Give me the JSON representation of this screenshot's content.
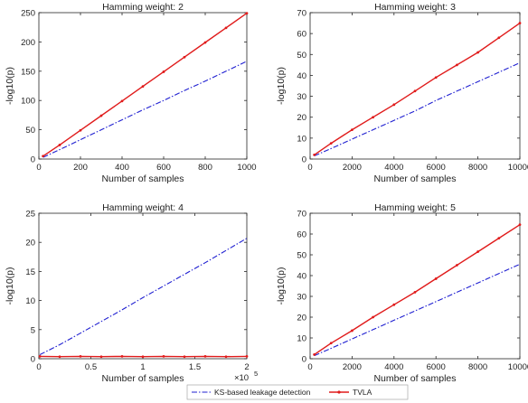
{
  "chart_data": [
    {
      "type": "line",
      "title": "Hamming weight: 2",
      "xlabel": "Number of samples",
      "ylabel": "-log10(p)",
      "xlim": [
        0,
        1000
      ],
      "ylim": [
        0,
        250
      ],
      "xticks": [
        0,
        200,
        400,
        600,
        800,
        1000
      ],
      "yticks": [
        0,
        50,
        100,
        150,
        200,
        250
      ],
      "x_exponent": "",
      "series": [
        {
          "name": "KS-based leakage detection",
          "x": [
            20,
            100,
            200,
            300,
            400,
            500,
            600,
            700,
            800,
            900,
            1000
          ],
          "y": [
            3,
            16,
            33,
            50,
            67,
            84,
            100,
            117,
            133,
            150,
            167
          ]
        },
        {
          "name": "TVLA",
          "x": [
            20,
            100,
            200,
            300,
            400,
            500,
            600,
            700,
            800,
            900,
            1000
          ],
          "y": [
            5,
            24,
            49,
            74,
            99,
            124,
            149,
            174,
            199,
            224,
            249
          ]
        }
      ]
    },
    {
      "type": "line",
      "title": "Hamming weight: 3",
      "xlabel": "Number of samples",
      "ylabel": "-log10(p)",
      "xlim": [
        0,
        10000
      ],
      "ylim": [
        0,
        70
      ],
      "xticks": [
        0,
        2000,
        4000,
        6000,
        8000,
        10000
      ],
      "yticks": [
        0,
        10,
        20,
        30,
        40,
        50,
        60,
        70
      ],
      "x_exponent": "",
      "series": [
        {
          "name": "KS-based leakage detection",
          "x": [
            200,
            1000,
            2000,
            3000,
            4000,
            5000,
            6000,
            7000,
            8000,
            9000,
            10000
          ],
          "y": [
            1.5,
            5,
            9.5,
            14,
            18.5,
            23,
            28,
            32.5,
            37,
            41.5,
            46
          ]
        },
        {
          "name": "TVLA",
          "x": [
            200,
            1000,
            2000,
            3000,
            4000,
            5000,
            6000,
            7000,
            8000,
            9000,
            10000
          ],
          "y": [
            2,
            7.5,
            14,
            20,
            26,
            32.5,
            39,
            45,
            51,
            58,
            65
          ]
        }
      ]
    },
    {
      "type": "line",
      "title": "Hamming weight: 4",
      "xlabel": "Number of samples",
      "ylabel": "-log10(p)",
      "xlim": [
        0,
        2
      ],
      "ylim": [
        0,
        25
      ],
      "xticks": [
        0,
        0.5,
        1,
        1.5,
        2
      ],
      "xtick_labels": [
        "0",
        "0.5",
        "1",
        "1.5",
        "2"
      ],
      "yticks": [
        0,
        5,
        10,
        15,
        20,
        25
      ],
      "x_exponent": "×10",
      "x_exponent_power": "5",
      "series": [
        {
          "name": "KS-based leakage detection",
          "x": [
            0.01,
            0.2,
            0.4,
            0.6,
            0.8,
            1.0,
            1.2,
            1.4,
            1.6,
            1.8,
            2.0
          ],
          "y": [
            0.7,
            2.4,
            4.4,
            6.4,
            8.4,
            10.5,
            12.5,
            14.5,
            16.5,
            18.6,
            20.7
          ]
        },
        {
          "name": "TVLA",
          "x": [
            0.01,
            0.2,
            0.4,
            0.6,
            0.8,
            1.0,
            1.2,
            1.4,
            1.6,
            1.8,
            2.0
          ],
          "y": [
            0.4,
            0.35,
            0.4,
            0.35,
            0.4,
            0.35,
            0.4,
            0.35,
            0.4,
            0.35,
            0.4
          ]
        }
      ]
    },
    {
      "type": "line",
      "title": "Hamming weight: 5",
      "xlabel": "Number of samples",
      "ylabel": "-log10(p)",
      "xlim": [
        0,
        10000
      ],
      "ylim": [
        0,
        70
      ],
      "xticks": [
        0,
        2000,
        4000,
        6000,
        8000,
        10000
      ],
      "yticks": [
        0,
        10,
        20,
        30,
        40,
        50,
        60,
        70
      ],
      "x_exponent": "",
      "series": [
        {
          "name": "KS-based leakage detection",
          "x": [
            200,
            1000,
            2000,
            3000,
            4000,
            5000,
            6000,
            7000,
            8000,
            9000,
            10000
          ],
          "y": [
            1.5,
            5,
            9.5,
            14,
            18.5,
            23,
            27.5,
            32,
            36.5,
            41,
            45.5
          ]
        },
        {
          "name": "TVLA",
          "x": [
            200,
            1000,
            2000,
            3000,
            4000,
            5000,
            6000,
            7000,
            8000,
            9000,
            10000
          ],
          "y": [
            2,
            7.5,
            13.5,
            20,
            26,
            32,
            38.5,
            45,
            51.5,
            58,
            64.5
          ]
        }
      ]
    }
  ],
  "legend": {
    "placement": "bottom-center",
    "items": [
      {
        "label": "KS-based leakage detection",
        "color": "#1f1fd1",
        "style": "dash-dot"
      },
      {
        "label": "TVLA",
        "color": "#e01b1b",
        "style": "solid-with-point-markers"
      }
    ]
  },
  "colors": {
    "ks": "#1f1fd1",
    "tvla": "#e01b1b",
    "axes": "#262626"
  }
}
